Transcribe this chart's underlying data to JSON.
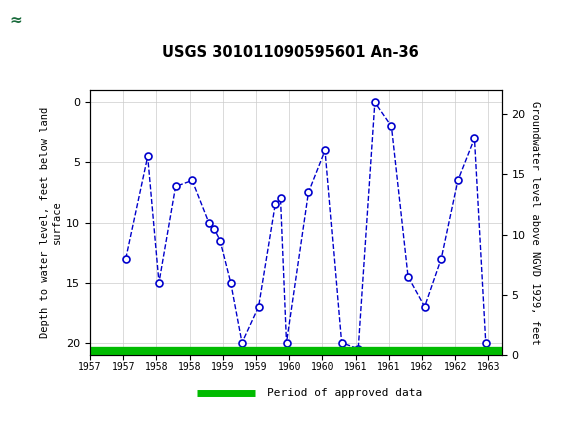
{
  "title": "USGS 301011090595601 An-36",
  "ylabel_left": "Depth to water level, feet below land\nsurface",
  "ylabel_right": "Groundwater level above NGVD 1929, feet",
  "header_color": "#1a6b3c",
  "line_color": "#0000cc",
  "marker_color": "#0000cc",
  "legend_color": "#00bb00",
  "ylim_left": [
    21,
    -1
  ],
  "ylim_right": [
    0,
    22
  ],
  "xlim": [
    1957.0,
    1963.2
  ],
  "x_ticks": [
    1957.0,
    1957.5,
    1958.0,
    1958.5,
    1959.0,
    1959.5,
    1960.0,
    1960.5,
    1961.0,
    1961.5,
    1962.0,
    1962.5,
    1963.0
  ],
  "x_tick_labels": [
    "1957",
    "1957",
    "1958",
    "1958",
    "1959",
    "1959",
    "1960",
    "1960",
    "1961",
    "1961",
    "1962",
    "1962",
    "1963"
  ],
  "data_x": [
    1957.54,
    1957.87,
    1958.04,
    1958.29,
    1958.54,
    1958.79,
    1958.87,
    1958.96,
    1959.12,
    1959.29,
    1959.54,
    1959.79,
    1959.87,
    1959.96,
    1960.29,
    1960.54,
    1960.79,
    1961.04,
    1961.29,
    1961.54,
    1961.79,
    1962.04,
    1962.29,
    1962.54,
    1962.79,
    1962.96
  ],
  "data_y": [
    13.0,
    4.5,
    15.0,
    7.0,
    6.5,
    10.0,
    10.5,
    11.5,
    15.0,
    20.0,
    17.0,
    8.5,
    8.0,
    20.0,
    7.5,
    4.0,
    20.0,
    20.5,
    0.0,
    2.0,
    14.5,
    17.0,
    13.0,
    6.5,
    3.0,
    20.0
  ],
  "yticks_left": [
    0,
    5,
    10,
    15,
    20
  ],
  "yticks_right": [
    0,
    5,
    10,
    15,
    20
  ],
  "grid_color": "#cccccc",
  "bg_color": "#ffffff",
  "fig_width": 5.8,
  "fig_height": 4.3,
  "dpi": 100
}
